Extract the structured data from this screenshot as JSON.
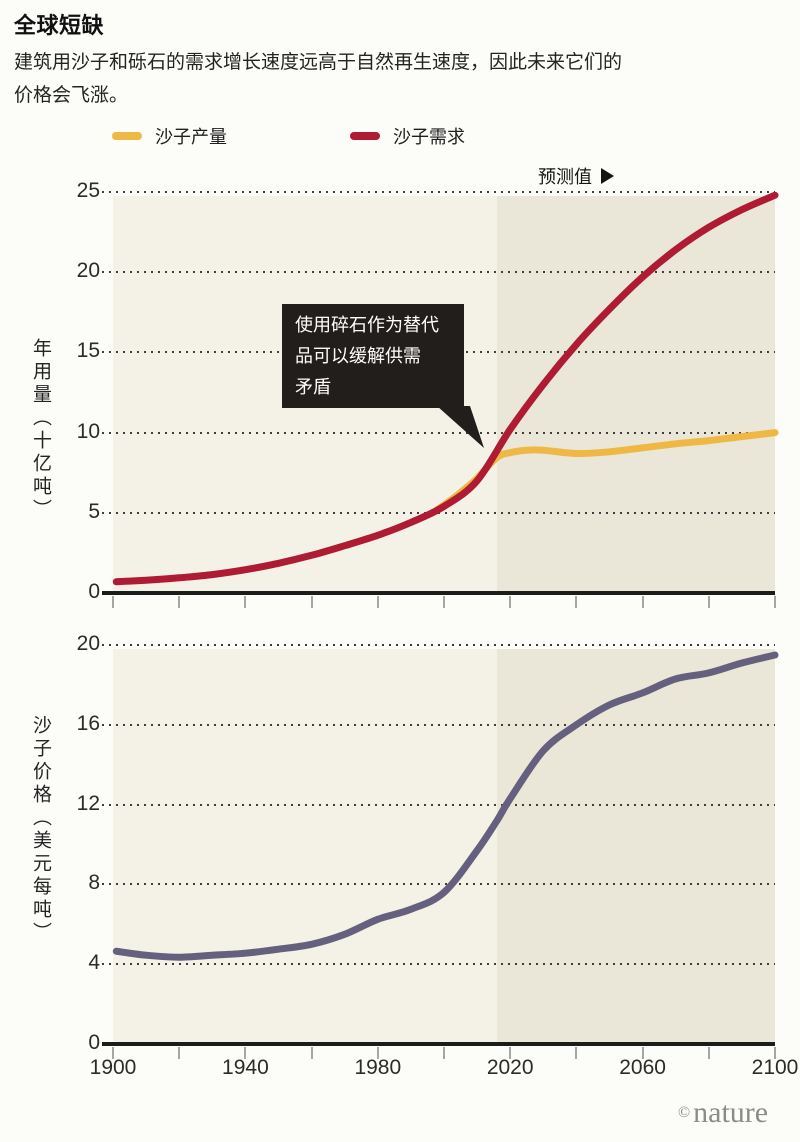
{
  "title": "全球短缺",
  "subtitle_lines": [
    "建筑用沙子和砾石的需求增长速度远高于自然再生速度，因此未来它们的",
    "价格会飞涨。"
  ],
  "legend": {
    "items": [
      {
        "label": "沙子产量",
        "color": "#efb845"
      },
      {
        "label": "沙子需求",
        "color": "#ae1b33"
      }
    ]
  },
  "forecast": {
    "label": "预测值",
    "arrow_icon": "right-triangle"
  },
  "watermark": {
    "symbol": "©",
    "text": "nature"
  },
  "colors": {
    "plot_bg": "#f4f1e6",
    "forecast_bg": "#eae7d8",
    "grid_dot": "#3d3d3d",
    "axis": "#1c1c1c",
    "tick": "#a6a6a6",
    "annotation_bg": "#221e1b",
    "annotation_text": "#ffffff",
    "text": "#232323",
    "watermark": "#8b8b8b"
  },
  "chart_data": [
    {
      "type": "line",
      "ylabel": "年用量（十亿吨）",
      "xlabel": "",
      "xlim": [
        1900,
        2100
      ],
      "ylim": [
        0,
        25
      ],
      "yticks": [
        0,
        5,
        10,
        15,
        20,
        25
      ],
      "xticks": [
        1900,
        1920,
        1940,
        1960,
        1980,
        2000,
        2020,
        2040,
        2060,
        2080,
        2100
      ],
      "xtick_labels": [],
      "forecast_start": 2016,
      "grid": "dotted-horizontal",
      "series": [
        {
          "name": "沙子产量",
          "color": "#efb845",
          "x": [
            1998,
            2004,
            2010,
            2016,
            2020,
            2025,
            2030,
            2040,
            2050,
            2060,
            2070,
            2080,
            2090,
            2100
          ],
          "values": [
            5.2,
            6.1,
            7.15,
            8.45,
            8.75,
            8.9,
            8.9,
            8.7,
            8.8,
            9.05,
            9.3,
            9.5,
            9.75,
            10.0
          ]
        },
        {
          "name": "沙子需求",
          "color": "#ae1b33",
          "x": [
            1901,
            1910,
            1920,
            1930,
            1940,
            1950,
            1960,
            1970,
            1980,
            1990,
            2000,
            2010,
            2020,
            2030,
            2040,
            2050,
            2060,
            2070,
            2080,
            2090,
            2100
          ],
          "values": [
            0.7,
            0.8,
            0.95,
            1.15,
            1.45,
            1.85,
            2.35,
            2.95,
            3.6,
            4.4,
            5.4,
            7.0,
            10.2,
            13.0,
            15.5,
            17.7,
            19.7,
            21.4,
            22.8,
            23.9,
            24.8
          ]
        }
      ],
      "annotation": {
        "lines": [
          "使用碎石作为替代",
          "品可以缓解供需",
          "矛盾"
        ],
        "points_to": {
          "x": 2016,
          "y": 8.6
        }
      }
    },
    {
      "type": "line",
      "ylabel": "沙子价格（美元每吨）",
      "xlabel": "",
      "xlim": [
        1900,
        2100
      ],
      "ylim": [
        0,
        20
      ],
      "yticks": [
        0,
        4,
        8,
        12,
        16,
        20
      ],
      "xticks": [
        1900,
        1920,
        1940,
        1960,
        1980,
        2000,
        2020,
        2040,
        2060,
        2080,
        2100
      ],
      "xtick_labels": [
        "1900",
        "1940",
        "1980",
        "2020",
        "2060",
        "2100"
      ],
      "forecast_start": 2016,
      "grid": "dotted-horizontal",
      "series": [
        {
          "name": "沙子价格",
          "color": "#66607f",
          "x": [
            1901,
            1910,
            1920,
            1930,
            1940,
            1950,
            1960,
            1970,
            1980,
            1990,
            2000,
            2010,
            2016,
            2020,
            2030,
            2040,
            2050,
            2060,
            2070,
            2080,
            2090,
            2100
          ],
          "values": [
            4.65,
            4.45,
            4.35,
            4.45,
            4.55,
            4.75,
            5.0,
            5.5,
            6.25,
            6.75,
            7.6,
            9.7,
            11.2,
            12.3,
            14.7,
            16.0,
            17.0,
            17.6,
            18.3,
            18.6,
            19.1,
            19.5
          ]
        }
      ]
    }
  ]
}
